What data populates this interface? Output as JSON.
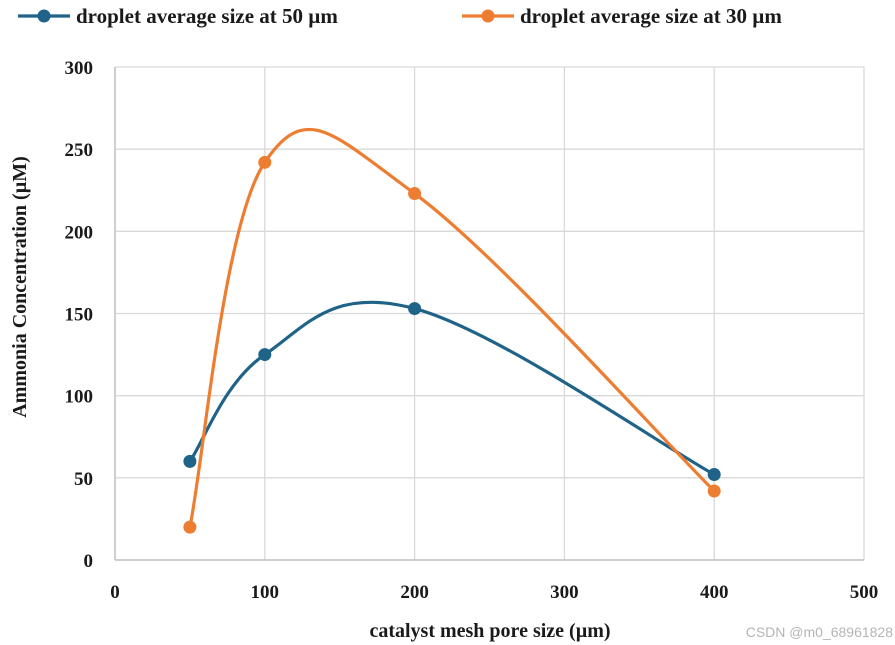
{
  "chart_data": {
    "type": "line",
    "smooth": true,
    "title": "",
    "xlabel": "catalyst mesh pore size (µm)",
    "ylabel": "Ammonia Concentration (µM)",
    "xlim": [
      0,
      500
    ],
    "ylim": [
      0,
      300
    ],
    "xticks": [
      0,
      100,
      200,
      300,
      400,
      500
    ],
    "yticks": [
      0,
      50,
      100,
      150,
      200,
      250,
      300
    ],
    "grid": true,
    "legend_position": "top",
    "series": [
      {
        "name": "droplet average size at 50 µm",
        "color": "#1f6388",
        "x": [
          50,
          100,
          200,
          400
        ],
        "y": [
          60,
          125,
          153,
          52
        ]
      },
      {
        "name": "droplet average size at 30 µm",
        "color": "#ed7d31",
        "x": [
          50,
          100,
          200,
          400
        ],
        "y": [
          20,
          242,
          223,
          42
        ]
      }
    ]
  },
  "watermark": "CSDN @m0_68961828"
}
